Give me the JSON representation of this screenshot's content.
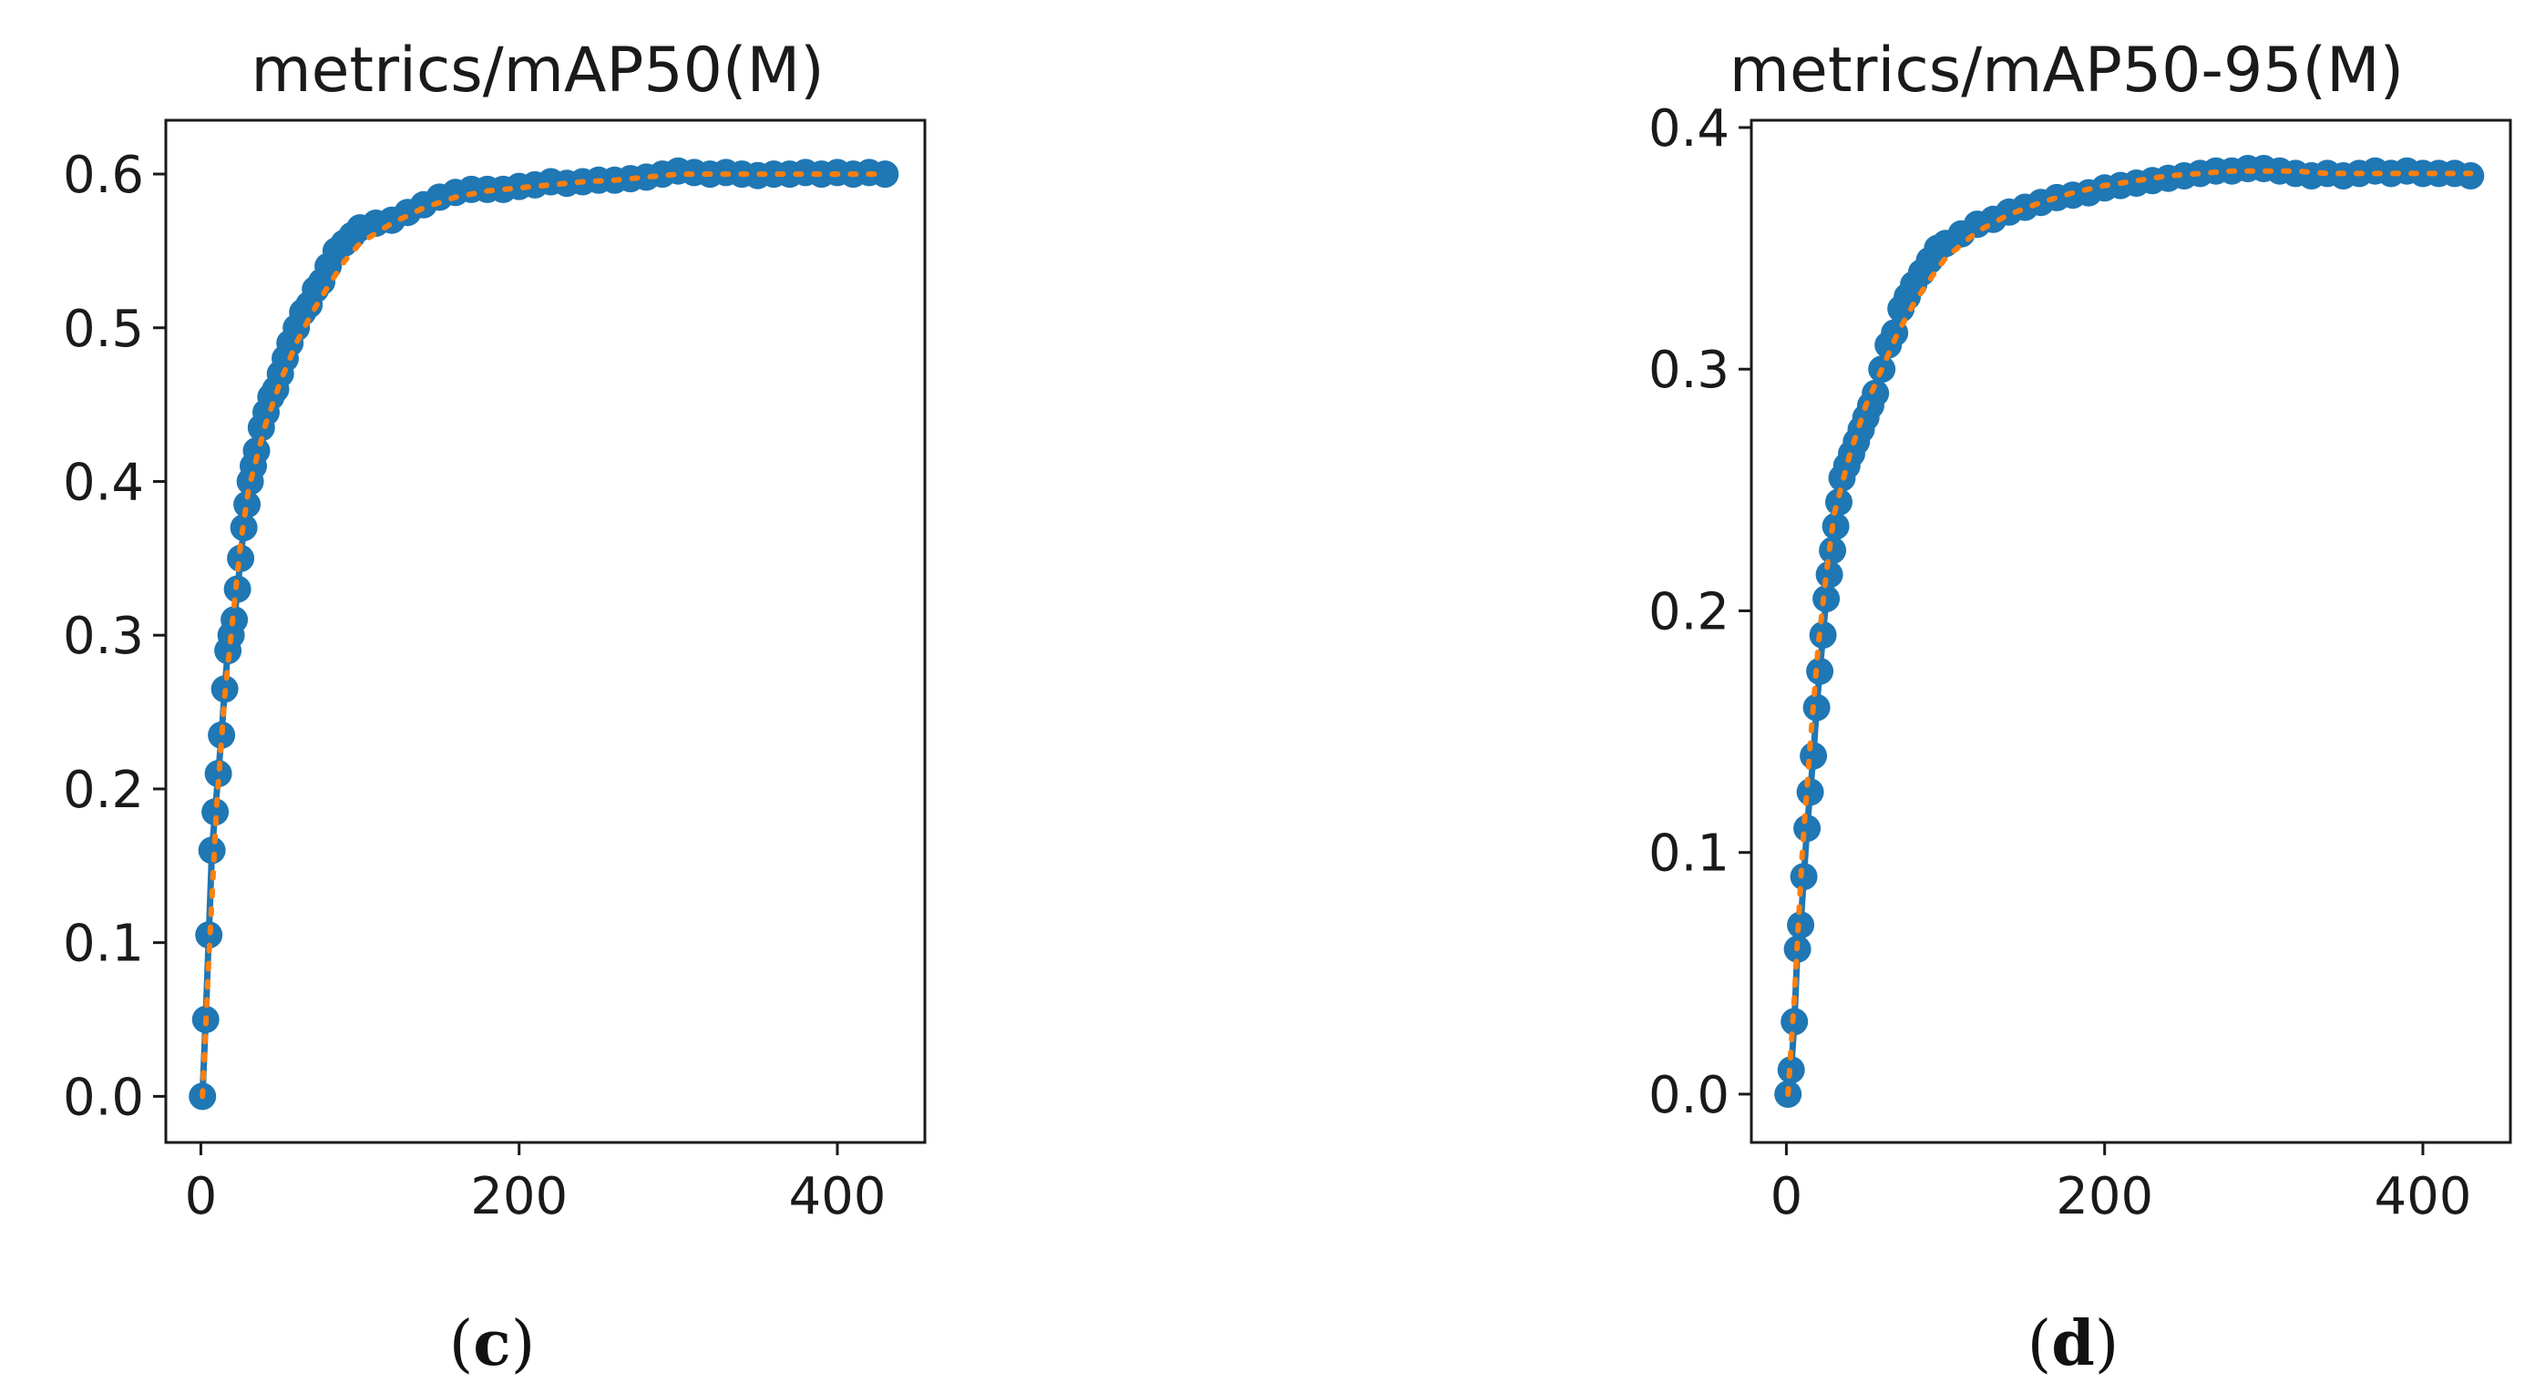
{
  "colors": {
    "marker": "#1f77b4",
    "smooth": "#ff7f0e",
    "axis": "#1a1a1a"
  },
  "chart_data": [
    {
      "type": "line",
      "title": "metrics/mAP50(M)",
      "caption": {
        "open": "(",
        "letter": "c",
        "close": ")"
      },
      "xlim": [
        -22,
        455
      ],
      "ylim": [
        -0.03,
        0.635
      ],
      "xticks": [
        0,
        200,
        400
      ],
      "yticks": [
        0.0,
        0.1,
        0.2,
        0.3,
        0.4,
        0.5,
        0.6
      ],
      "series": [
        {
          "x": [
            1,
            3,
            5,
            7,
            9,
            11,
            13,
            15,
            17,
            19,
            21,
            23,
            25,
            27,
            29,
            31,
            33,
            35,
            38,
            41,
            44,
            47,
            50,
            53,
            56,
            60,
            64,
            68,
            72,
            76,
            80,
            85,
            90,
            95,
            100,
            110,
            120,
            130,
            140,
            150,
            160,
            170,
            180,
            190,
            200,
            210,
            220,
            230,
            240,
            250,
            260,
            270,
            280,
            290,
            300,
            310,
            320,
            330,
            340,
            350,
            360,
            370,
            380,
            390,
            400,
            410,
            420,
            430
          ],
          "y": [
            0.0,
            0.05,
            0.105,
            0.16,
            0.185,
            0.21,
            0.235,
            0.265,
            0.29,
            0.3,
            0.31,
            0.33,
            0.35,
            0.37,
            0.385,
            0.4,
            0.41,
            0.42,
            0.435,
            0.445,
            0.455,
            0.46,
            0.47,
            0.48,
            0.49,
            0.5,
            0.51,
            0.515,
            0.525,
            0.53,
            0.54,
            0.55,
            0.555,
            0.56,
            0.565,
            0.568,
            0.57,
            0.575,
            0.58,
            0.585,
            0.588,
            0.59,
            0.59,
            0.59,
            0.592,
            0.593,
            0.595,
            0.594,
            0.595,
            0.596,
            0.596,
            0.597,
            0.598,
            0.6,
            0.602,
            0.601,
            0.6,
            0.601,
            0.6,
            0.599,
            0.6,
            0.6,
            0.601,
            0.6,
            0.601,
            0.6,
            0.601,
            0.6
          ]
        },
        {
          "x": [
            1,
            5,
            10,
            15,
            20,
            25,
            30,
            40,
            50,
            60,
            70,
            80,
            90,
            100,
            120,
            140,
            160,
            180,
            200,
            220,
            240,
            260,
            280,
            300,
            320,
            340,
            360,
            380,
            400,
            420,
            430
          ],
          "y": [
            0.0,
            0.09,
            0.19,
            0.26,
            0.31,
            0.36,
            0.395,
            0.435,
            0.465,
            0.49,
            0.51,
            0.527,
            0.543,
            0.555,
            0.568,
            0.578,
            0.585,
            0.589,
            0.591,
            0.593,
            0.595,
            0.596,
            0.598,
            0.6,
            0.6,
            0.6,
            0.6,
            0.6,
            0.6,
            0.6,
            0.6
          ]
        }
      ]
    },
    {
      "type": "line",
      "title": "metrics/mAP50-95(M)",
      "caption": {
        "open": "(",
        "letter": "d",
        "close": ")"
      },
      "xlim": [
        -22,
        455
      ],
      "ylim": [
        -0.02,
        0.403
      ],
      "xticks": [
        0,
        200,
        400
      ],
      "yticks": [
        0.0,
        0.1,
        0.2,
        0.3,
        0.4
      ],
      "series": [
        {
          "x": [
            1,
            3,
            5,
            7,
            9,
            11,
            13,
            15,
            17,
            19,
            21,
            23,
            25,
            27,
            29,
            31,
            33,
            35,
            38,
            41,
            44,
            47,
            50,
            53,
            56,
            60,
            64,
            68,
            72,
            76,
            80,
            85,
            90,
            95,
            100,
            110,
            120,
            130,
            140,
            150,
            160,
            170,
            180,
            190,
            200,
            210,
            220,
            230,
            240,
            250,
            260,
            270,
            280,
            290,
            300,
            310,
            320,
            330,
            340,
            350,
            360,
            370,
            380,
            390,
            400,
            410,
            420,
            430
          ],
          "y": [
            0.0,
            0.01,
            0.03,
            0.06,
            0.07,
            0.09,
            0.11,
            0.125,
            0.14,
            0.16,
            0.175,
            0.19,
            0.205,
            0.215,
            0.225,
            0.235,
            0.245,
            0.255,
            0.26,
            0.265,
            0.27,
            0.275,
            0.28,
            0.285,
            0.29,
            0.3,
            0.31,
            0.315,
            0.325,
            0.33,
            0.335,
            0.34,
            0.345,
            0.35,
            0.352,
            0.356,
            0.36,
            0.362,
            0.365,
            0.367,
            0.369,
            0.371,
            0.372,
            0.373,
            0.375,
            0.376,
            0.377,
            0.378,
            0.379,
            0.38,
            0.381,
            0.382,
            0.382,
            0.383,
            0.383,
            0.382,
            0.381,
            0.38,
            0.381,
            0.38,
            0.381,
            0.382,
            0.381,
            0.382,
            0.381,
            0.381,
            0.381,
            0.38
          ]
        },
        {
          "x": [
            1,
            5,
            10,
            15,
            20,
            25,
            30,
            40,
            50,
            60,
            70,
            80,
            90,
            100,
            120,
            140,
            160,
            180,
            200,
            220,
            240,
            260,
            280,
            300,
            320,
            340,
            360,
            380,
            400,
            420,
            430
          ],
          "y": [
            0.0,
            0.04,
            0.1,
            0.145,
            0.185,
            0.215,
            0.24,
            0.265,
            0.285,
            0.3,
            0.315,
            0.327,
            0.337,
            0.346,
            0.357,
            0.364,
            0.369,
            0.373,
            0.376,
            0.378,
            0.38,
            0.381,
            0.382,
            0.382,
            0.382,
            0.381,
            0.381,
            0.381,
            0.381,
            0.381,
            0.381
          ]
        }
      ]
    }
  ]
}
